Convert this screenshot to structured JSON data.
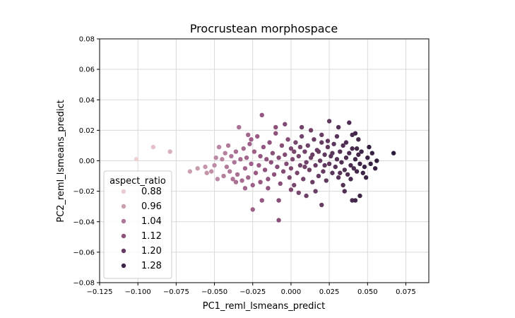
{
  "chart_data": {
    "type": "scatter",
    "title": "Procrustean morphospace",
    "xlabel": "PC1_reml_lsmeans_predict",
    "ylabel": "PC2_reml_lsmeans_predict",
    "xlim": [
      -0.125,
      0.09
    ],
    "ylim": [
      -0.08,
      0.08
    ],
    "xticks": [
      -0.125,
      -0.1,
      -0.075,
      -0.05,
      -0.025,
      0.0,
      0.025,
      0.05,
      0.075
    ],
    "xtick_labels": [
      "−0.125",
      "−0.100",
      "−0.075",
      "−0.050",
      "−0.025",
      "0.000",
      "0.025",
      "0.050",
      "0.075"
    ],
    "yticks": [
      -0.08,
      -0.06,
      -0.04,
      -0.02,
      0.0,
      0.02,
      0.04,
      0.06,
      0.08
    ],
    "ytick_labels": [
      "−0.08",
      "−0.06",
      "−0.04",
      "−0.02",
      "0.00",
      "0.02",
      "0.04",
      "0.06",
      "0.08"
    ],
    "grid": true,
    "hue_range": [
      0.86,
      1.32
    ],
    "color_low": "#f3d6d6",
    "color_mid": "#9a5a85",
    "color_high": "#2b1a3a",
    "legend": {
      "title": "aspect_ratio",
      "placement": "lower-left",
      "entries": [
        {
          "label": "0.88",
          "value": 0.88
        },
        {
          "label": "0.96",
          "value": 0.96
        },
        {
          "label": "1.04",
          "value": 1.04
        },
        {
          "label": "1.12",
          "value": 1.12
        },
        {
          "label": "1.20",
          "value": 1.2
        },
        {
          "label": "1.28",
          "value": 1.28
        }
      ]
    },
    "points": [
      [
        -0.101,
        0.001,
        0.87
      ],
      [
        -0.09,
        0.009,
        0.9
      ],
      [
        -0.079,
        0.006,
        0.93
      ],
      [
        -0.066,
        -0.007,
        0.96
      ],
      [
        -0.061,
        -0.005,
        0.97
      ],
      [
        -0.056,
        -0.004,
        0.98
      ],
      [
        -0.055,
        -0.008,
        0.98
      ],
      [
        -0.052,
        -0.007,
        0.99
      ],
      [
        -0.05,
        -0.003,
        1.0
      ],
      [
        -0.049,
        0.002,
        1.0
      ],
      [
        -0.048,
        -0.012,
        1.0
      ],
      [
        -0.047,
        0.009,
        1.01
      ],
      [
        -0.045,
        0.001,
        1.01
      ],
      [
        -0.044,
        -0.01,
        1.02
      ],
      [
        -0.043,
        0.005,
        1.02
      ],
      [
        -0.042,
        -0.004,
        1.03
      ],
      [
        -0.041,
        0.01,
        1.03
      ],
      [
        -0.04,
        -0.007,
        1.03
      ],
      [
        -0.039,
        0.003,
        1.04
      ],
      [
        -0.038,
        -0.012,
        1.04
      ],
      [
        -0.037,
        -0.001,
        1.04
      ],
      [
        -0.036,
        0.006,
        1.05
      ],
      [
        -0.035,
        -0.009,
        1.05
      ],
      [
        -0.034,
        0.022,
        1.05
      ],
      [
        -0.033,
        0.001,
        1.06
      ],
      [
        -0.032,
        -0.013,
        1.06
      ],
      [
        -0.031,
        0.008,
        1.06
      ],
      [
        -0.03,
        -0.005,
        1.07
      ],
      [
        -0.029,
        0.002,
        1.07
      ],
      [
        -0.028,
        -0.011,
        1.07
      ],
      [
        -0.027,
        0.011,
        1.08
      ],
      [
        -0.026,
        -0.002,
        1.08
      ],
      [
        -0.025,
        -0.016,
        1.08
      ],
      [
        -0.024,
        0.006,
        1.08
      ],
      [
        -0.023,
        -0.008,
        1.09
      ],
      [
        -0.022,
        0.016,
        1.09
      ],
      [
        -0.021,
        -0.003,
        1.09
      ],
      [
        -0.02,
        0.003,
        1.1
      ],
      [
        -0.02,
        -0.014,
        1.1
      ],
      [
        -0.019,
        0.03,
        1.1
      ],
      [
        -0.018,
        0.009,
        1.1
      ],
      [
        -0.017,
        -0.006,
        1.11
      ],
      [
        -0.016,
        0.001,
        1.11
      ],
      [
        -0.015,
        -0.012,
        1.11
      ],
      [
        -0.014,
        0.012,
        1.11
      ],
      [
        -0.013,
        -0.001,
        1.12
      ],
      [
        -0.012,
        0.005,
        1.12
      ],
      [
        -0.011,
        -0.009,
        1.12
      ],
      [
        -0.01,
        0.018,
        1.12
      ],
      [
        -0.009,
        -0.004,
        1.13
      ],
      [
        -0.008,
        0.002,
        1.13
      ],
      [
        -0.007,
        -0.015,
        1.13
      ],
      [
        -0.006,
        0.01,
        1.13
      ],
      [
        -0.005,
        -0.007,
        1.14
      ],
      [
        -0.004,
        0.004,
        1.14
      ],
      [
        -0.003,
        -0.002,
        1.14
      ],
      [
        -0.002,
        0.014,
        1.14
      ],
      [
        -0.001,
        -0.011,
        1.15
      ],
      [
        0.0,
        0.008,
        1.15
      ],
      [
        0.0,
        -0.005,
        1.15
      ],
      [
        0.001,
        0.001,
        1.15
      ],
      [
        0.002,
        -0.016,
        1.16
      ],
      [
        0.003,
        0.012,
        1.16
      ],
      [
        0.004,
        -0.008,
        1.16
      ],
      [
        0.005,
        0.003,
        1.16
      ],
      [
        0.006,
        -0.003,
        1.17
      ],
      [
        0.007,
        0.016,
        1.17
      ],
      [
        0.008,
        -0.012,
        1.17
      ],
      [
        0.009,
        0.006,
        1.17
      ],
      [
        0.01,
        -0.001,
        1.18
      ],
      [
        0.011,
        0.01,
        1.18
      ],
      [
        0.012,
        -0.006,
        1.18
      ],
      [
        0.013,
        0.002,
        1.18
      ],
      [
        0.014,
        -0.014,
        1.19
      ],
      [
        0.015,
        0.014,
        1.19
      ],
      [
        0.016,
        -0.003,
        1.19
      ],
      [
        0.017,
        0.007,
        1.19
      ],
      [
        0.018,
        -0.01,
        1.2
      ],
      [
        0.019,
        0.0,
        1.2
      ],
      [
        0.02,
        0.012,
        1.2
      ],
      [
        0.021,
        -0.007,
        1.2
      ],
      [
        0.022,
        0.004,
        1.21
      ],
      [
        0.023,
        -0.013,
        1.21
      ],
      [
        0.024,
        0.009,
        1.21
      ],
      [
        0.025,
        -0.002,
        1.21
      ],
      [
        0.026,
        0.003,
        1.22
      ],
      [
        0.027,
        -0.008,
        1.22
      ],
      [
        0.028,
        0.011,
        1.22
      ],
      [
        0.029,
        -0.004,
        1.23
      ],
      [
        0.03,
        0.001,
        1.23
      ],
      [
        0.031,
        -0.011,
        1.23
      ],
      [
        0.032,
        0.006,
        1.23
      ],
      [
        0.033,
        -0.001,
        1.24
      ],
      [
        0.034,
        0.01,
        1.24
      ],
      [
        0.035,
        -0.006,
        1.24
      ],
      [
        0.036,
        0.002,
        1.25
      ],
      [
        0.037,
        -0.009,
        1.25
      ],
      [
        0.038,
        0.005,
        1.25
      ],
      [
        0.039,
        -0.003,
        1.26
      ],
      [
        0.04,
        0.008,
        1.26
      ],
      [
        0.041,
        -0.005,
        1.26
      ],
      [
        0.042,
        0.001,
        1.27
      ],
      [
        0.043,
        -0.007,
        1.27
      ],
      [
        0.044,
        0.004,
        1.27
      ],
      [
        0.045,
        -0.002,
        1.28
      ],
      [
        0.046,
        0.006,
        1.28
      ],
      [
        0.048,
        -0.004,
        1.29
      ],
      [
        0.05,
        0.002,
        1.29
      ],
      [
        0.051,
        0.009,
        1.3
      ],
      [
        0.055,
        -0.005,
        1.3
      ],
      [
        0.056,
        0.0,
        1.31
      ],
      [
        0.067,
        0.005,
        1.32
      ],
      [
        0.031,
        0.022,
        1.23
      ],
      [
        0.025,
        0.026,
        1.21
      ],
      [
        0.02,
        0.017,
        1.2
      ],
      [
        0.04,
        0.017,
        1.26
      ],
      [
        0.038,
        0.025,
        1.25
      ],
      [
        0.042,
        0.018,
        1.27
      ],
      [
        0.035,
        -0.02,
        1.24
      ],
      [
        0.04,
        -0.026,
        1.26
      ],
      [
        0.042,
        -0.026,
        1.27
      ],
      [
        0.045,
        -0.023,
        1.28
      ],
      [
        0.02,
        -0.029,
        1.2
      ],
      [
        0.01,
        -0.023,
        1.18
      ],
      [
        -0.008,
        -0.026,
        1.13
      ],
      [
        -0.019,
        -0.026,
        1.1
      ],
      [
        -0.025,
        -0.032,
        1.08
      ],
      [
        -0.008,
        -0.039,
        1.13
      ],
      [
        0.0,
        -0.019,
        1.15
      ],
      [
        -0.028,
        0.017,
        1.07
      ],
      [
        -0.026,
        0.014,
        1.08
      ],
      [
        -0.036,
        -0.014,
        1.05
      ],
      [
        -0.03,
        -0.018,
        1.07
      ],
      [
        -0.015,
        -0.018,
        1.11
      ],
      [
        0.005,
        -0.021,
        1.16
      ],
      [
        0.013,
        0.02,
        1.18
      ],
      [
        0.007,
        0.022,
        1.17
      ],
      [
        -0.004,
        0.024,
        1.14
      ],
      [
        0.049,
        -0.011,
        1.29
      ],
      [
        0.034,
        -0.016,
        1.24
      ],
      [
        0.044,
        0.014,
        1.27
      ],
      [
        0.03,
        0.016,
        1.23
      ],
      [
        -0.01,
        0.022,
        1.12
      ],
      [
        0.016,
        -0.02,
        1.19
      ],
      [
        0.002,
        0.006,
        1.16
      ],
      [
        0.006,
        0.009,
        1.17
      ],
      [
        0.009,
        -0.004,
        1.17
      ],
      [
        0.014,
        0.004,
        1.19
      ],
      [
        0.018,
        0.006,
        1.2
      ],
      [
        0.022,
        -0.003,
        1.21
      ],
      [
        0.024,
        0.013,
        1.21
      ],
      [
        0.027,
        0.005,
        1.22
      ],
      [
        0.032,
        -0.008,
        1.23
      ],
      [
        0.036,
        0.012,
        1.25
      ],
      [
        0.039,
        -0.012,
        1.26
      ],
      [
        0.043,
        0.008,
        1.27
      ],
      [
        0.047,
        -0.008,
        1.28
      ],
      [
        0.052,
        -0.002,
        1.3
      ],
      [
        0.053,
        0.005,
        1.3
      ]
    ]
  }
}
